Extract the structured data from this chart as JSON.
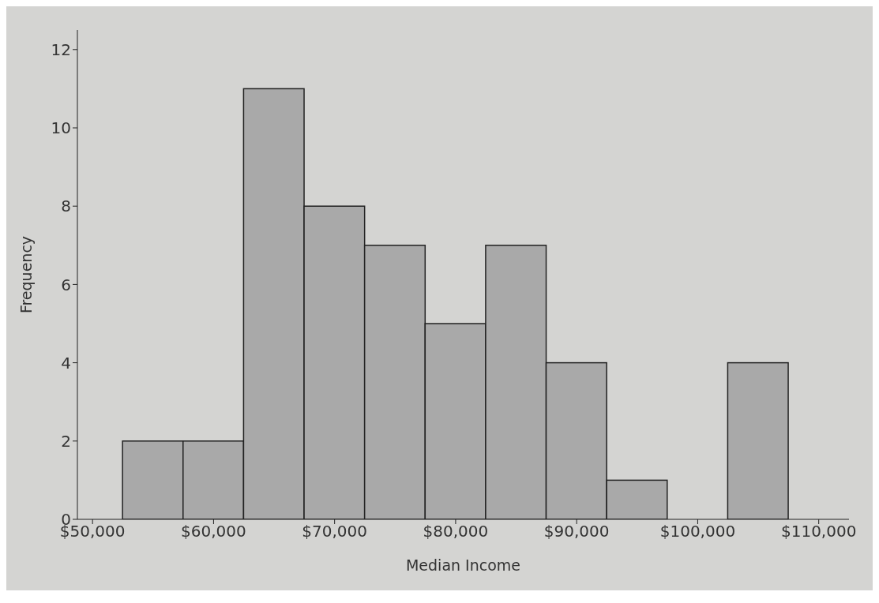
{
  "chart_data": {
    "type": "histogram",
    "xlabel": "Median Income",
    "ylabel": "Frequency",
    "bins": [
      52500,
      57500,
      62500,
      67500,
      72500,
      77500,
      82500,
      87500,
      92500,
      97500,
      102500,
      107500
    ],
    "values": [
      2,
      2,
      11,
      8,
      7,
      5,
      7,
      4,
      1,
      0,
      4
    ],
    "color": "#a9a9a9",
    "xlim": [
      48750,
      112500
    ],
    "xticks": [
      {
        "value": 50000,
        "label": "$50,000"
      },
      {
        "value": 60000,
        "label": "$60,000"
      },
      {
        "value": 70000,
        "label": "$70,000"
      },
      {
        "value": 80000,
        "label": "$80,000"
      },
      {
        "value": 90000,
        "label": "$90,000"
      },
      {
        "value": 100000,
        "label": "$100,000"
      },
      {
        "value": 110000,
        "label": "$110,000"
      }
    ],
    "ylim": [
      0,
      12.5
    ],
    "yticks": [
      0,
      2,
      4,
      6,
      8,
      10,
      12
    ],
    "grid": false,
    "legend": false
  }
}
